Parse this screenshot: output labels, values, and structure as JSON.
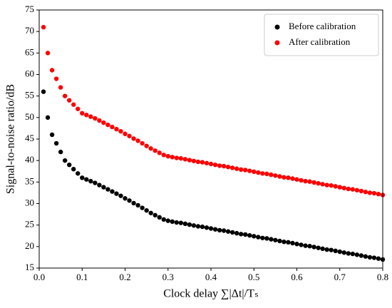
{
  "chart_data": {
    "type": "scatter",
    "x_label": "Clock delay ∑|Δt|/Tₛ",
    "y_label": "Signal-to-noise ratio/dB",
    "xlim": [
      0,
      0.8
    ],
    "ylim": [
      15,
      75
    ],
    "xticks": [
      {
        "value": 0,
        "label": "0.0"
      },
      0.1,
      0.2,
      0.3,
      0.4,
      0.5,
      0.6,
      0.7,
      0.8
    ],
    "yticks": [
      15,
      20,
      25,
      30,
      35,
      40,
      45,
      50,
      55,
      60,
      65,
      70,
      75
    ],
    "legend_position": "upper right",
    "x": [
      0.01,
      0.02,
      0.03,
      0.04,
      0.05,
      0.06,
      0.07,
      0.08,
      0.09,
      0.1,
      0.11,
      0.12,
      0.13,
      0.14,
      0.15,
      0.16,
      0.17,
      0.18,
      0.19,
      0.2,
      0.21,
      0.22,
      0.23,
      0.24,
      0.25,
      0.26,
      0.27,
      0.28,
      0.29,
      0.3,
      0.31,
      0.32,
      0.33,
      0.34,
      0.35,
      0.36,
      0.37,
      0.38,
      0.39,
      0.4,
      0.41,
      0.42,
      0.43,
      0.44,
      0.45,
      0.46,
      0.47,
      0.48,
      0.49,
      0.5,
      0.51,
      0.52,
      0.53,
      0.54,
      0.55,
      0.56,
      0.57,
      0.58,
      0.59,
      0.6,
      0.61,
      0.62,
      0.63,
      0.64,
      0.65,
      0.66,
      0.67,
      0.68,
      0.69,
      0.7,
      0.71,
      0.72,
      0.73,
      0.74,
      0.75,
      0.76,
      0.77,
      0.78,
      0.79,
      0.8
    ],
    "series": [
      {
        "name": "Before calibration",
        "color": "#000000",
        "values": [
          56,
          50,
          46,
          44,
          42,
          40,
          39,
          38,
          37,
          36,
          35.6,
          35.2,
          34.8,
          34.3,
          33.8,
          33.3,
          32.8,
          32.3,
          31.8,
          31.2,
          30.7,
          30.1,
          29.6,
          29,
          28.4,
          27.8,
          27.3,
          26.8,
          26.3,
          26,
          25.8,
          25.6,
          25.5,
          25.3,
          25.1,
          24.9,
          24.7,
          24.6,
          24.4,
          24.2,
          24.0,
          23.8,
          23.7,
          23.5,
          23.3,
          23.1,
          22.9,
          22.8,
          22.6,
          22.4,
          22.2,
          22.0,
          21.9,
          21.7,
          21.5,
          21.3,
          21.1,
          21.0,
          20.8,
          20.6,
          20.4,
          20.2,
          20.1,
          19.9,
          19.7,
          19.5,
          19.3,
          19.2,
          19.0,
          18.8,
          18.6,
          18.4,
          18.3,
          18.1,
          17.9,
          17.7,
          17.5,
          17.4,
          17.2,
          17.0
        ]
      },
      {
        "name": "After calibration",
        "color": "#ff0000",
        "values": [
          71,
          65,
          61,
          59,
          57,
          55,
          54,
          53,
          52,
          51,
          50.6,
          50.2,
          49.8,
          49.3,
          48.8,
          48.3,
          47.8,
          47.3,
          46.8,
          46.2,
          45.7,
          45.1,
          44.6,
          44,
          43.4,
          42.8,
          42.3,
          41.8,
          41.3,
          41,
          40.8,
          40.6,
          40.5,
          40.3,
          40.1,
          39.9,
          39.7,
          39.6,
          39.4,
          39.2,
          39.0,
          38.8,
          38.7,
          38.5,
          38.3,
          38.1,
          37.9,
          37.8,
          37.6,
          37.4,
          37.2,
          37.0,
          36.9,
          36.7,
          36.5,
          36.3,
          36.1,
          36.0,
          35.8,
          35.6,
          35.4,
          35.2,
          35.1,
          34.9,
          34.7,
          34.5,
          34.3,
          34.2,
          34.0,
          33.8,
          33.6,
          33.4,
          33.3,
          33.1,
          32.9,
          32.7,
          32.5,
          32.4,
          32.2,
          32.0
        ]
      }
    ]
  }
}
